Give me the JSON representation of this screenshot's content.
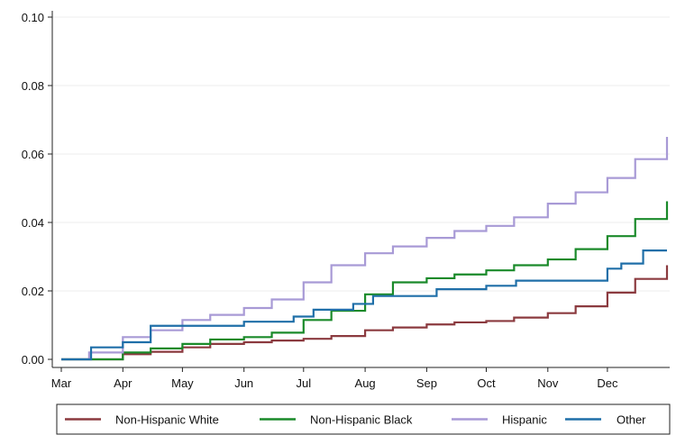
{
  "chart_data": {
    "type": "line",
    "line_style": "step",
    "x_type": "date",
    "title": "",
    "xlabel": "",
    "ylabel": "",
    "grid": true,
    "legend_position": "bottom",
    "xlim": [
      "2020-03-01",
      "2020-12-31"
    ],
    "ylim": [
      0,
      0.1
    ],
    "x_tick_labels": [
      "Mar",
      "Apr",
      "May",
      "Jun",
      "Jul",
      "Aug",
      "Sep",
      "Oct",
      "Nov",
      "Dec"
    ],
    "x_ticks": [
      "2020-03-01",
      "2020-04-01",
      "2020-05-01",
      "2020-06-01",
      "2020-07-01",
      "2020-08-01",
      "2020-09-01",
      "2020-10-01",
      "2020-11-01",
      "2020-12-01"
    ],
    "y_ticks": [
      0,
      0.02,
      0.04,
      0.06,
      0.08,
      0.1
    ],
    "y_tick_labels": [
      "0.00",
      "0.02",
      "0.04",
      "0.06",
      "0.08",
      "0.10"
    ],
    "series": [
      {
        "name": "Non-Hispanic White",
        "color": "#8b3a3f",
        "points": [
          [
            "2020-03-01",
            0.0
          ],
          [
            "2020-03-15",
            0.0
          ],
          [
            "2020-04-01",
            0.0015
          ],
          [
            "2020-04-15",
            0.0022
          ],
          [
            "2020-05-01",
            0.0035
          ],
          [
            "2020-05-15",
            0.0045
          ],
          [
            "2020-06-01",
            0.005
          ],
          [
            "2020-06-15",
            0.0055
          ],
          [
            "2020-07-01",
            0.006
          ],
          [
            "2020-07-15",
            0.0068
          ],
          [
            "2020-08-01",
            0.0085
          ],
          [
            "2020-08-15",
            0.0093
          ],
          [
            "2020-09-01",
            0.0102
          ],
          [
            "2020-09-15",
            0.0108
          ],
          [
            "2020-10-01",
            0.0112
          ],
          [
            "2020-10-15",
            0.0122
          ],
          [
            "2020-11-01",
            0.0135
          ],
          [
            "2020-11-15",
            0.0155
          ],
          [
            "2020-12-01",
            0.0195
          ],
          [
            "2020-12-15",
            0.0235
          ],
          [
            "2020-12-31",
            0.0275
          ]
        ]
      },
      {
        "name": "Non-Hispanic Black",
        "color": "#1a8a2a",
        "points": [
          [
            "2020-03-01",
            0.0
          ],
          [
            "2020-03-15",
            0.0
          ],
          [
            "2020-04-01",
            0.002
          ],
          [
            "2020-04-15",
            0.0032
          ],
          [
            "2020-05-01",
            0.0045
          ],
          [
            "2020-05-15",
            0.0058
          ],
          [
            "2020-06-01",
            0.0065
          ],
          [
            "2020-06-15",
            0.0078
          ],
          [
            "2020-07-01",
            0.0115
          ],
          [
            "2020-07-15",
            0.0142
          ],
          [
            "2020-08-01",
            0.019
          ],
          [
            "2020-08-15",
            0.0225
          ],
          [
            "2020-09-01",
            0.0237
          ],
          [
            "2020-09-15",
            0.0248
          ],
          [
            "2020-10-01",
            0.026
          ],
          [
            "2020-10-15",
            0.0275
          ],
          [
            "2020-11-01",
            0.0292
          ],
          [
            "2020-11-15",
            0.0322
          ],
          [
            "2020-12-01",
            0.036
          ],
          [
            "2020-12-15",
            0.041
          ],
          [
            "2020-12-31",
            0.0462
          ]
        ]
      },
      {
        "name": "Hispanic",
        "color": "#a89ad6",
        "points": [
          [
            "2020-03-01",
            0.0
          ],
          [
            "2020-03-15",
            0.002
          ],
          [
            "2020-04-01",
            0.0065
          ],
          [
            "2020-04-15",
            0.0085
          ],
          [
            "2020-05-01",
            0.0115
          ],
          [
            "2020-05-15",
            0.013
          ],
          [
            "2020-06-01",
            0.015
          ],
          [
            "2020-06-15",
            0.0175
          ],
          [
            "2020-07-01",
            0.0225
          ],
          [
            "2020-07-15",
            0.0275
          ],
          [
            "2020-08-01",
            0.031
          ],
          [
            "2020-08-15",
            0.033
          ],
          [
            "2020-09-01",
            0.0355
          ],
          [
            "2020-09-15",
            0.0375
          ],
          [
            "2020-10-01",
            0.039
          ],
          [
            "2020-10-15",
            0.0415
          ],
          [
            "2020-11-01",
            0.0455
          ],
          [
            "2020-11-15",
            0.0488
          ],
          [
            "2020-12-01",
            0.053
          ],
          [
            "2020-12-15",
            0.0585
          ],
          [
            "2020-12-31",
            0.065
          ]
        ]
      },
      {
        "name": "Other",
        "color": "#1f6fa8",
        "points": [
          [
            "2020-03-01",
            0.0
          ],
          [
            "2020-03-15",
            0.0
          ],
          [
            "2020-03-16",
            0.0035
          ],
          [
            "2020-03-31",
            0.0035
          ],
          [
            "2020-04-01",
            0.005
          ],
          [
            "2020-04-14",
            0.005
          ],
          [
            "2020-04-15",
            0.0098
          ],
          [
            "2020-05-31",
            0.0098
          ],
          [
            "2020-06-01",
            0.011
          ],
          [
            "2020-06-25",
            0.011
          ],
          [
            "2020-06-26",
            0.0125
          ],
          [
            "2020-07-05",
            0.0125
          ],
          [
            "2020-07-06",
            0.0145
          ],
          [
            "2020-07-25",
            0.0145
          ],
          [
            "2020-07-26",
            0.0162
          ],
          [
            "2020-08-04",
            0.0162
          ],
          [
            "2020-08-05",
            0.0185
          ],
          [
            "2020-09-05",
            0.0185
          ],
          [
            "2020-09-06",
            0.0205
          ],
          [
            "2020-09-30",
            0.0205
          ],
          [
            "2020-10-01",
            0.0215
          ],
          [
            "2020-10-15",
            0.0215
          ],
          [
            "2020-10-16",
            0.023
          ],
          [
            "2020-11-30",
            0.023
          ],
          [
            "2020-12-01",
            0.0265
          ],
          [
            "2020-12-07",
            0.0265
          ],
          [
            "2020-12-08",
            0.028
          ],
          [
            "2020-12-18",
            0.028
          ],
          [
            "2020-12-19",
            0.0318
          ],
          [
            "2020-12-31",
            0.0318
          ]
        ]
      }
    ]
  }
}
